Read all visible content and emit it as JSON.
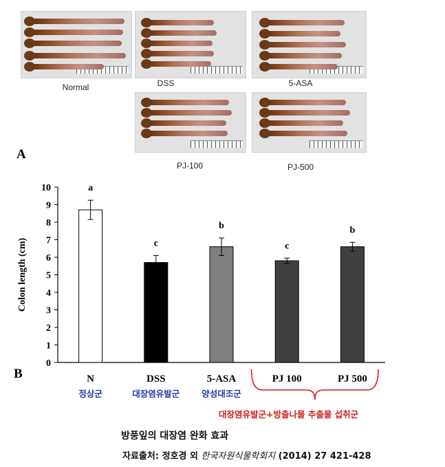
{
  "photos": [
    {
      "label": "Normal"
    },
    {
      "label": "DSS"
    },
    {
      "label": "5-ASA"
    },
    {
      "label": "PJ-100"
    },
    {
      "label": "PJ-500"
    }
  ],
  "panel_a": "A",
  "panel_b": "B",
  "chart_data": {
    "type": "bar",
    "ylabel": "Colon  length (cm)",
    "ylim": [
      0,
      10
    ],
    "yticks": [
      "0",
      "1",
      "2",
      "3",
      "4",
      "5",
      "6",
      "7",
      "8",
      "9",
      "10"
    ],
    "categories": [
      "N",
      "DSS",
      "5-ASA",
      "PJ 100",
      "PJ 500"
    ],
    "group_labels": [
      "정상군",
      "대장염유발군",
      "양성대조군"
    ],
    "values": [
      8.7,
      5.7,
      6.6,
      5.8,
      6.6
    ],
    "errors": [
      0.55,
      0.4,
      0.5,
      0.15,
      0.25
    ],
    "significance": [
      "a",
      "c",
      "b",
      "c",
      "b"
    ],
    "colors": [
      "#ffffff",
      "#000000",
      "#7f7f7f",
      "#404040",
      "#404040"
    ],
    "bracket_label": "대장염유발군+방출나물 추출물 섭취군",
    "bracket_color": "#d21e1e",
    "group_label_color": "#1f3da1"
  },
  "caption": {
    "title": "방풍잎의 대장염 완화 효과",
    "source_prefix": "자료출처: 정호경 외",
    "source_journal": "한국자원식물학회지",
    "source_suffix": "(2014)  27 421-428"
  }
}
